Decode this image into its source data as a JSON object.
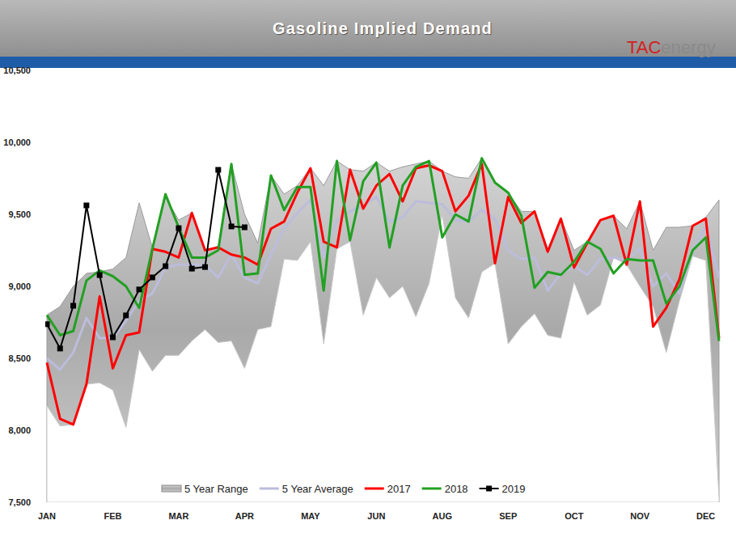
{
  "chart_data": {
    "type": "line",
    "title": "Gasoline Implied Demand",
    "annotations": [
      "TAC",
      "energy"
    ],
    "legend": "bottom",
    "grid": false,
    "categories": [
      "JAN",
      null,
      null,
      null,
      null,
      "FEB",
      null,
      null,
      null,
      null,
      "MAR",
      null,
      null,
      null,
      null,
      "APR",
      null,
      null,
      null,
      null,
      "MAY",
      null,
      null,
      null,
      null,
      "JUN",
      null,
      null,
      null,
      null,
      "AUG",
      null,
      null,
      null,
      null,
      "SEP",
      null,
      null,
      null,
      null,
      "OCT",
      null,
      null,
      null,
      null,
      "NOV",
      null,
      null,
      null,
      null,
      "DEC",
      null
    ],
    "ylim": [
      7500,
      10500
    ],
    "yticks": [
      {
        "value": 7500,
        "label": "7,500"
      },
      {
        "value": 8000,
        "label": "8,000"
      },
      {
        "value": 8500,
        "label": "8,500"
      },
      {
        "value": 9000,
        "label": "9,000"
      },
      {
        "value": 9500,
        "label": "9,500"
      },
      {
        "value": 10000,
        "label": "10,000"
      },
      {
        "value": 10500,
        "label": "10,500"
      }
    ],
    "series": [
      {
        "name": "5 Year Range",
        "type": "area",
        "color": "#a9a9a9",
        "values": [
          8800,
          8860,
          9000,
          9090,
          9100,
          9120,
          9200,
          9580,
          9270,
          9620,
          9460,
          9510,
          9250,
          9280,
          9850,
          9500,
          9300,
          9770,
          9640,
          9700,
          9820,
          9700,
          9870,
          9810,
          9800,
          9860,
          9800,
          9830,
          9850,
          9870,
          9800,
          9760,
          9750,
          9890,
          9720,
          9650,
          9520,
          9520,
          9260,
          9470,
          9250,
          9310,
          9460,
          9490,
          9400,
          9590,
          9250,
          9410,
          9410,
          9420,
          9480,
          9600
        ],
        "low": [
          8170,
          8030,
          8040,
          8320,
          8330,
          8280,
          8020,
          8560,
          8410,
          8520,
          8520,
          8620,
          8700,
          8610,
          8620,
          8430,
          8700,
          8720,
          9190,
          9180,
          9310,
          8600,
          9260,
          9310,
          8800,
          9060,
          8920,
          9000,
          8790,
          9020,
          9500,
          8920,
          8780,
          9100,
          9160,
          8600,
          8720,
          8810,
          8660,
          8640,
          9030,
          8800,
          8870,
          9200,
          9150,
          9000,
          8860,
          8540,
          8900,
          9210,
          9180,
          7530
        ]
      },
      {
        "name": "5 Year Average",
        "type": "line",
        "color": "#bcbcdc",
        "values": [
          8500,
          8420,
          8540,
          8780,
          8640,
          8640,
          8760,
          8900,
          8950,
          9130,
          9150,
          9150,
          9150,
          9060,
          9220,
          9060,
          9020,
          9220,
          9400,
          9510,
          9600,
          9200,
          9460,
          9520,
          9560,
          9620,
          9450,
          9480,
          9590,
          9580,
          9570,
          9460,
          9450,
          9530,
          9470,
          9250,
          9190,
          9200,
          8970,
          9090,
          9140,
          9080,
          9190,
          9200,
          9180,
          9260,
          9000,
          9090,
          8950,
          9250,
          9420,
          9060
        ]
      },
      {
        "name": "2017",
        "type": "line",
        "color": "#ff0000",
        "values": [
          8470,
          8080,
          8040,
          8320,
          8930,
          8430,
          8660,
          8680,
          9260,
          9240,
          9200,
          9510,
          9250,
          9270,
          9220,
          9200,
          9150,
          9400,
          9450,
          9650,
          9820,
          9310,
          9270,
          9810,
          9540,
          9700,
          9780,
          9590,
          9820,
          9840,
          9800,
          9520,
          9630,
          9850,
          9160,
          9620,
          9440,
          9520,
          9240,
          9470,
          9130,
          9300,
          9460,
          9490,
          9150,
          9590,
          8720,
          8850,
          9050,
          9420,
          9470,
          8640
        ]
      },
      {
        "name": "2018",
        "type": "line",
        "color": "#22a022",
        "values": [
          8800,
          8660,
          8690,
          9040,
          9110,
          9070,
          9000,
          8850,
          9260,
          9640,
          9410,
          9200,
          9200,
          9250,
          9850,
          9080,
          9090,
          9770,
          9530,
          9690,
          9690,
          8970,
          9870,
          9320,
          9730,
          9860,
          9270,
          9700,
          9830,
          9870,
          9340,
          9500,
          9450,
          9890,
          9720,
          9650,
          9490,
          8990,
          9100,
          9080,
          9170,
          9310,
          9260,
          9090,
          9190,
          9180,
          9180,
          8880,
          9000,
          9250,
          9340,
          8620
        ]
      },
      {
        "name": "2019",
        "type": "line",
        "color": "#000000",
        "marker": "square",
        "values": [
          8737,
          8568,
          8865,
          9562,
          9078,
          8646,
          8798,
          8978,
          9062,
          9140,
          9404,
          9123,
          9134,
          9809,
          9416,
          9410,
          null,
          null,
          null,
          null,
          null,
          null,
          null,
          null,
          null,
          null,
          null,
          null,
          null,
          null,
          null,
          null,
          null,
          null,
          null,
          null,
          null,
          null,
          null,
          null,
          null,
          null,
          null,
          null,
          null,
          null,
          null,
          null,
          null,
          null,
          null,
          null
        ]
      }
    ]
  }
}
